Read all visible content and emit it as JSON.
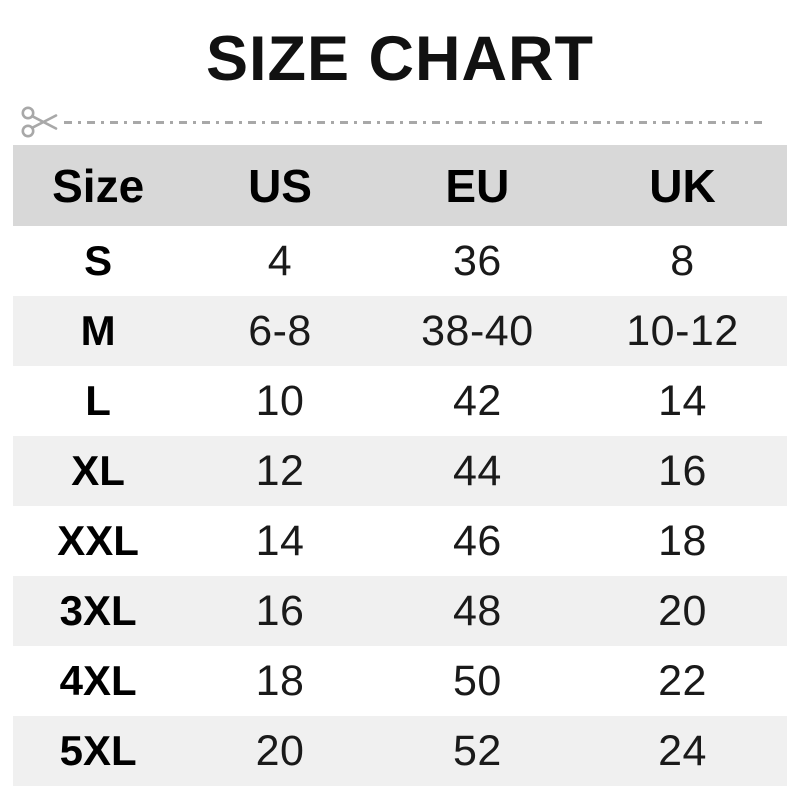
{
  "title": "SIZE CHART",
  "cutline": {
    "icon": "scissors-icon",
    "color": "#a8a8a8"
  },
  "colors": {
    "header_bg": "#d8d8d8",
    "row_bg": "#ffffff",
    "row_alt_bg": "#f0f0f0",
    "title_text": "#111111",
    "cell_text": "#1a1a1a"
  },
  "table": {
    "columns": [
      "Size",
      "US",
      "EU",
      "UK"
    ],
    "rows": [
      [
        "S",
        "4",
        "36",
        "8"
      ],
      [
        "M",
        "6-8",
        "38-40",
        "10-12"
      ],
      [
        "L",
        "10",
        "42",
        "14"
      ],
      [
        "XL",
        "12",
        "44",
        "16"
      ],
      [
        "XXL",
        "14",
        "46",
        "18"
      ],
      [
        "3XL",
        "16",
        "48",
        "20"
      ],
      [
        "4XL",
        "18",
        "50",
        "22"
      ],
      [
        "5XL",
        "20",
        "52",
        "24"
      ]
    ]
  },
  "chart_data": {
    "type": "table",
    "title": "SIZE CHART",
    "columns": [
      "Size",
      "US",
      "EU",
      "UK"
    ],
    "rows": [
      [
        "S",
        "4",
        "36",
        "8"
      ],
      [
        "M",
        "6-8",
        "38-40",
        "10-12"
      ],
      [
        "L",
        "10",
        "42",
        "14"
      ],
      [
        "XL",
        "12",
        "44",
        "16"
      ],
      [
        "XXL",
        "14",
        "46",
        "18"
      ],
      [
        "3XL",
        "16",
        "48",
        "20"
      ],
      [
        "4XL",
        "18",
        "50",
        "22"
      ],
      [
        "5XL",
        "20",
        "52",
        "24"
      ]
    ]
  }
}
